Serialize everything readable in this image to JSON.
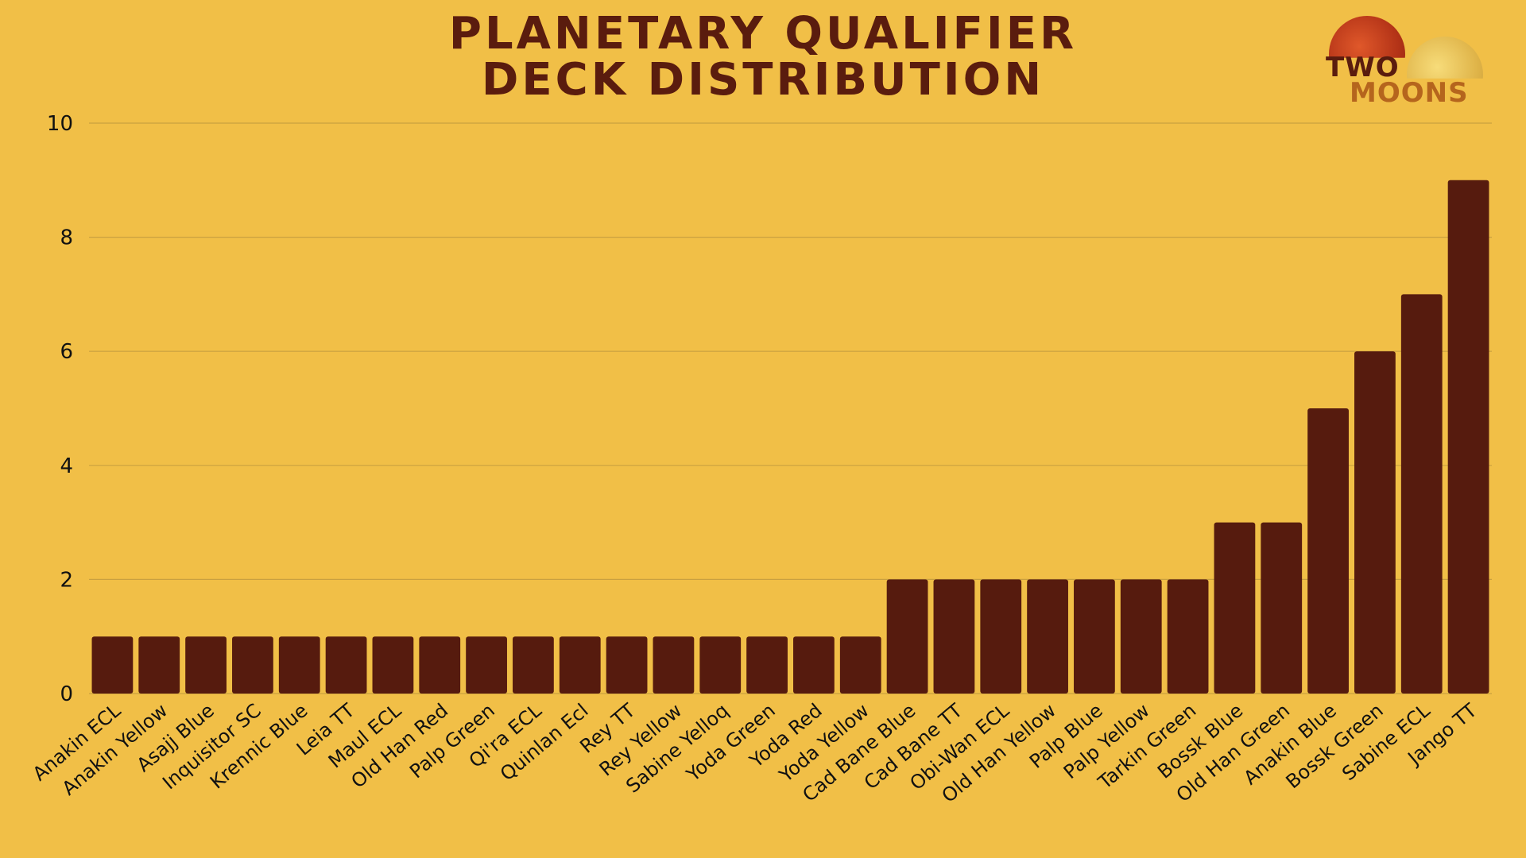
{
  "title_lines": [
    "Planetary Qualifier",
    "Deck Distribution"
  ],
  "logo": {
    "word1": "TWO",
    "word2": "MOONS"
  },
  "colors": {
    "background": "#F1BF47",
    "bar": "#561B0E",
    "text": "#111111",
    "grid": "#C9A040"
  },
  "chart_data": {
    "type": "bar",
    "title": "Planetary Qualifier Deck Distribution",
    "xlabel": "",
    "ylabel": "",
    "ylim": [
      0,
      10
    ],
    "yticks": [
      0,
      2,
      4,
      6,
      8,
      10
    ],
    "grid": true,
    "categories": [
      "Anakin ECL",
      "Anakin Yellow",
      "Asajj Blue",
      "Inquisitor SC",
      "Krennic Blue",
      "Leia TT",
      "Maul ECL",
      "Old Han Red",
      "Palp Green",
      "Qi'ra ECL",
      "Quinlan Ecl",
      "Rey TT",
      "Rey Yellow",
      "Sabine Yelloq",
      "Yoda Green",
      "Yoda Red",
      "Yoda Yellow",
      "Cad Bane Blue",
      "Cad Bane TT",
      "Obi-Wan ECL",
      "Old Han Yellow",
      "Palp Blue",
      "Palp Yellow",
      "Tarkin Green",
      "Bossk Blue",
      "Old Han Green",
      "Anakin Blue",
      "Bossk Green",
      "Sabine ECL",
      "Jango TT"
    ],
    "values": [
      1,
      1,
      1,
      1,
      1,
      1,
      1,
      1,
      1,
      1,
      1,
      1,
      1,
      1,
      1,
      1,
      1,
      2,
      2,
      2,
      2,
      2,
      2,
      2,
      3,
      3,
      5,
      6,
      7,
      9
    ]
  }
}
